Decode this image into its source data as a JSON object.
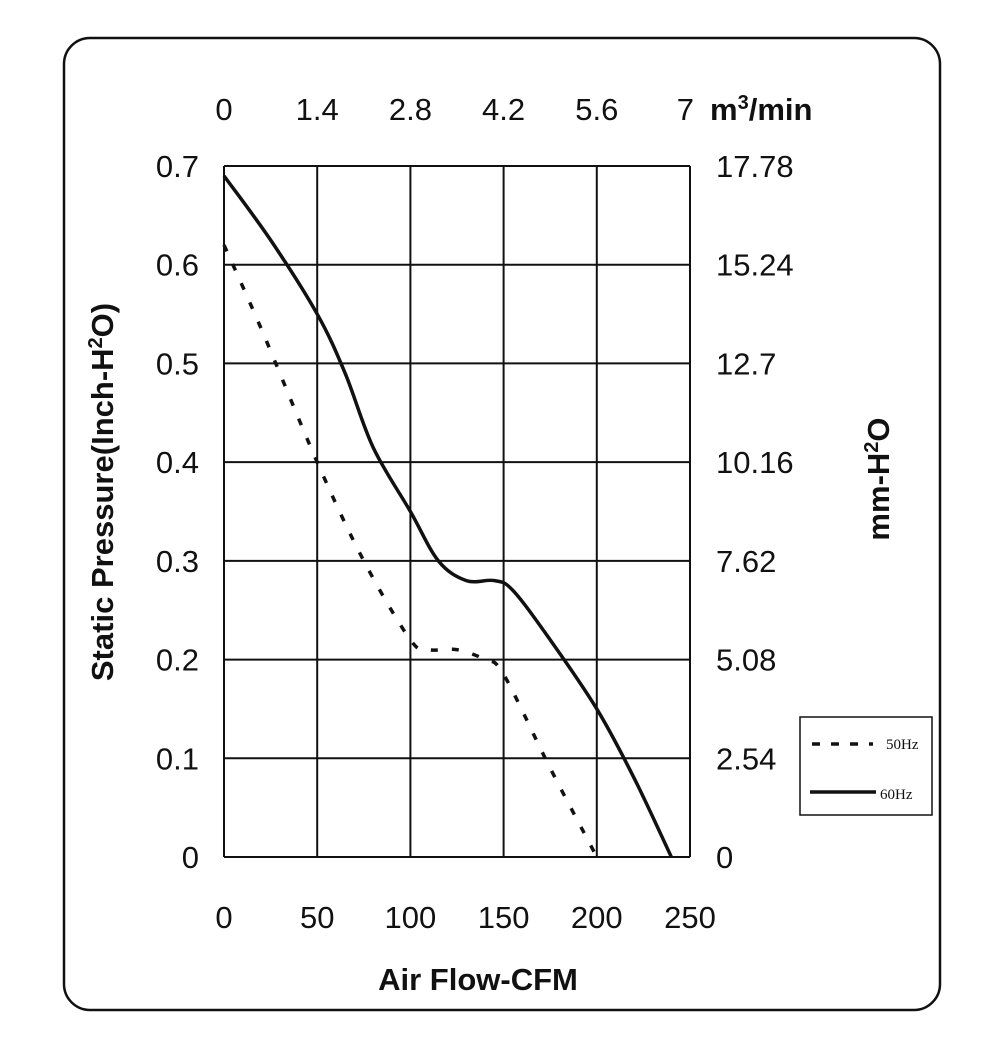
{
  "chart_data": {
    "type": "line",
    "xlabel": "Air Flow-CFM",
    "ylabel": "Static Pressure(Inch-H²O)",
    "y2label": "mm-H²O",
    "x2_unit": "m³/min",
    "xlim": [
      0,
      250
    ],
    "ylim": [
      0,
      0.7
    ],
    "x_ticks": [
      "0",
      "50",
      "100",
      "150",
      "200",
      "250"
    ],
    "y_ticks": [
      "0",
      "0.1",
      "0.2",
      "0.3",
      "0.4",
      "0.5",
      "0.6",
      "0.7"
    ],
    "x2_ticks": [
      "0",
      "1.4",
      "2.8",
      "4.2",
      "5.6",
      "7"
    ],
    "y2_ticks": [
      "0",
      "2.54",
      "5.08",
      "7.62",
      "10.16",
      "12.7",
      "15.24",
      "17.78"
    ],
    "grid": true,
    "legend_position": "right",
    "series": [
      {
        "name": "50Hz",
        "style": "dashed",
        "color": "#111111",
        "x": [
          0,
          20,
          50,
          75,
          100,
          110,
          125,
          140,
          150,
          175,
          200
        ],
        "y": [
          0.62,
          0.535,
          0.4,
          0.3,
          0.22,
          0.21,
          0.21,
          0.2,
          0.185,
          0.09,
          0.0
        ]
      },
      {
        "name": "60Hz",
        "style": "solid",
        "color": "#111111",
        "x": [
          0,
          25,
          50,
          65,
          80,
          100,
          115,
          130,
          145,
          155,
          175,
          200,
          220,
          240
        ],
        "y": [
          0.69,
          0.625,
          0.55,
          0.49,
          0.415,
          0.35,
          0.3,
          0.28,
          0.28,
          0.27,
          0.22,
          0.15,
          0.08,
          0.0
        ]
      }
    ]
  }
}
